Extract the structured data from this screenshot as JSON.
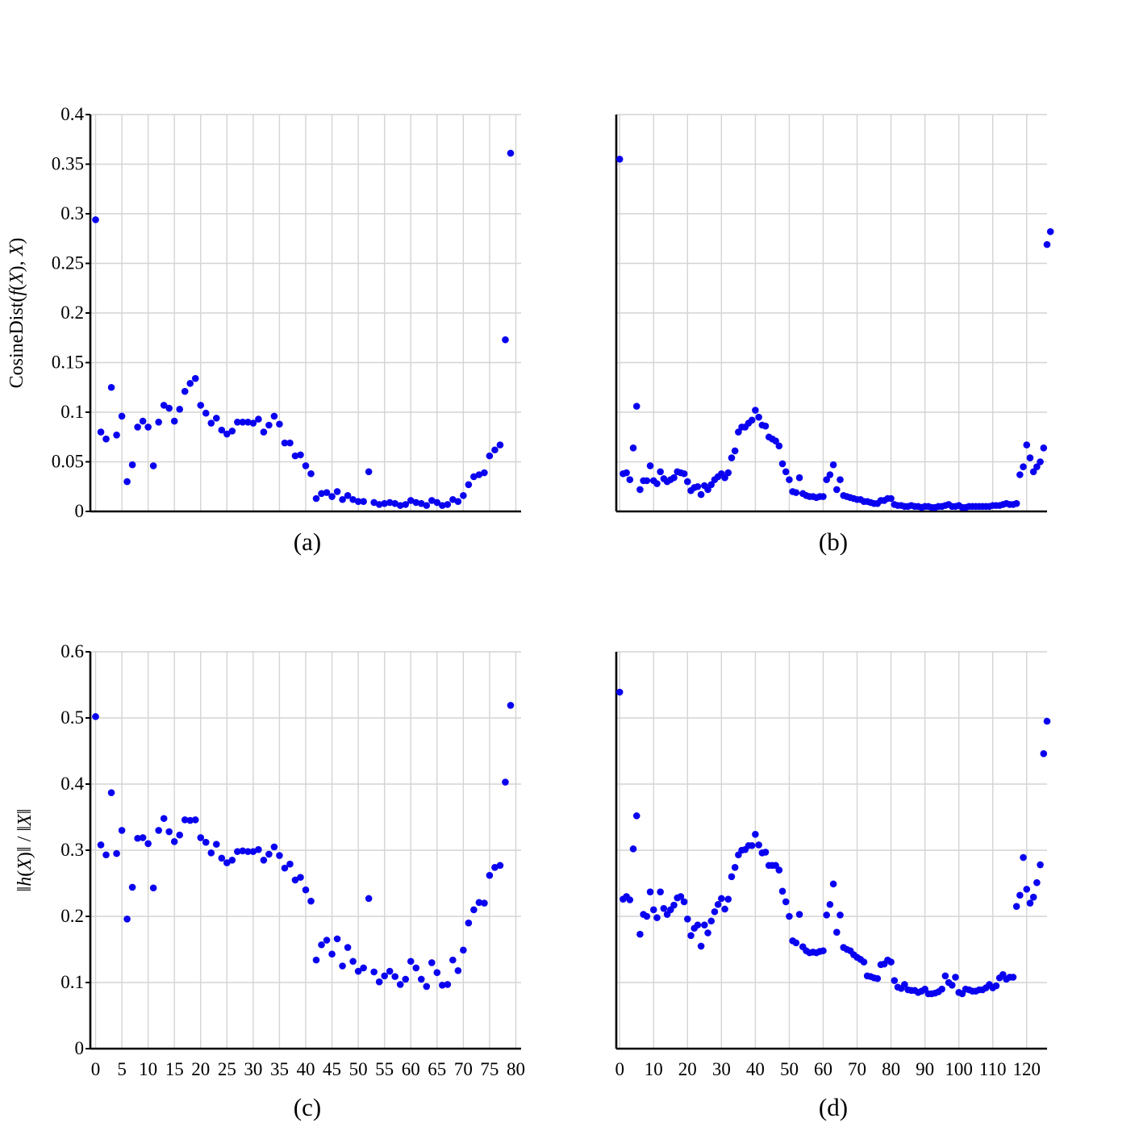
{
  "colors": {
    "points": "#0a00f0",
    "grid": "#d4d4d4",
    "axis": "#000000"
  },
  "chart_data": [
    {
      "panel": "a",
      "type": "scatter",
      "caption": "(a)",
      "ylabel": "CosineDist(f(X), X)",
      "xlim": [
        -1,
        81
      ],
      "ylim": [
        0,
        0.4
      ],
      "yticks": [
        0,
        0.05,
        0.1,
        0.15,
        0.2,
        0.25,
        0.3,
        0.35,
        0.4
      ],
      "ytick_labels": [
        "0",
        "0.05",
        "0.1",
        "0.15",
        "0.2",
        "0.25",
        "0.3",
        "0.35",
        "0.4"
      ],
      "xgrid": [
        0,
        5,
        10,
        15,
        20,
        25,
        30,
        35,
        40,
        45,
        50,
        55,
        60,
        65,
        70,
        75,
        80
      ],
      "xtick_labels": [],
      "x_start": 0,
      "values": [
        0.294,
        0.08,
        0.073,
        0.125,
        0.077,
        0.096,
        0.03,
        0.047,
        0.085,
        0.091,
        0.085,
        0.046,
        0.09,
        0.107,
        0.104,
        0.091,
        0.103,
        0.121,
        0.129,
        0.134,
        0.107,
        0.099,
        0.089,
        0.094,
        0.082,
        0.078,
        0.081,
        0.09,
        0.09,
        0.09,
        0.089,
        0.093,
        0.08,
        0.087,
        0.096,
        0.088,
        0.069,
        0.069,
        0.056,
        0.057,
        0.046,
        0.038,
        0.013,
        0.018,
        0.019,
        0.015,
        0.02,
        0.012,
        0.016,
        0.012,
        0.01,
        0.01,
        0.04,
        0.009,
        0.007,
        0.008,
        0.009,
        0.008,
        0.006,
        0.007,
        0.011,
        0.009,
        0.008,
        0.006,
        0.011,
        0.009,
        0.006,
        0.007,
        0.012,
        0.01,
        0.016,
        0.027,
        0.035,
        0.037,
        0.039,
        0.056,
        0.062,
        0.067,
        0.173,
        0.361
      ]
    },
    {
      "panel": "b",
      "type": "scatter",
      "caption": "(b)",
      "ylabel": "",
      "xlim": [
        -1,
        126
      ],
      "ylim": [
        0,
        0.4
      ],
      "yticks": [
        0,
        0.05,
        0.1,
        0.15,
        0.2,
        0.25,
        0.3,
        0.35,
        0.4
      ],
      "ytick_labels": [],
      "xgrid": [
        0,
        10,
        20,
        30,
        40,
        50,
        60,
        70,
        80,
        90,
        100,
        110,
        120
      ],
      "xtick_labels": [],
      "x_start": 0,
      "values": [
        0.355,
        0.038,
        0.039,
        0.032,
        0.064,
        0.106,
        0.022,
        0.031,
        0.031,
        0.046,
        0.031,
        0.028,
        0.04,
        0.033,
        0.03,
        0.032,
        0.034,
        0.04,
        0.039,
        0.038,
        0.03,
        0.021,
        0.024,
        0.025,
        0.017,
        0.026,
        0.022,
        0.027,
        0.032,
        0.035,
        0.038,
        0.034,
        0.039,
        0.054,
        0.061,
        0.08,
        0.085,
        0.085,
        0.089,
        0.092,
        0.102,
        0.095,
        0.087,
        0.086,
        0.075,
        0.073,
        0.071,
        0.066,
        0.048,
        0.04,
        0.032,
        0.02,
        0.019,
        0.034,
        0.018,
        0.016,
        0.015,
        0.015,
        0.014,
        0.015,
        0.015,
        0.032,
        0.037,
        0.047,
        0.022,
        0.032,
        0.016,
        0.015,
        0.014,
        0.013,
        0.012,
        0.012,
        0.01,
        0.01,
        0.009,
        0.008,
        0.008,
        0.011,
        0.011,
        0.013,
        0.013,
        0.007,
        0.006,
        0.006,
        0.005,
        0.005,
        0.006,
        0.005,
        0.005,
        0.004,
        0.005,
        0.005,
        0.004,
        0.004,
        0.005,
        0.005,
        0.006,
        0.007,
        0.005,
        0.005,
        0.006,
        0.004,
        0.004,
        0.005,
        0.005,
        0.005,
        0.005,
        0.005,
        0.005,
        0.005,
        0.006,
        0.006,
        0.006,
        0.007,
        0.008,
        0.007,
        0.007,
        0.008,
        0.037,
        0.045,
        0.067,
        0.054,
        0.04,
        0.045,
        0.05,
        0.064,
        0.269,
        0.282
      ]
    },
    {
      "panel": "c",
      "type": "scatter",
      "caption": "(c)",
      "ylabel": "‖h(X)‖ / ‖X‖",
      "xlim": [
        -1,
        81
      ],
      "ylim": [
        0,
        0.6
      ],
      "yticks": [
        0,
        0.1,
        0.2,
        0.3,
        0.4,
        0.5,
        0.6
      ],
      "ytick_labels": [
        "0",
        "0.1",
        "0.2",
        "0.3",
        "0.4",
        "0.5",
        "0.6"
      ],
      "xgrid": [
        0,
        5,
        10,
        15,
        20,
        25,
        30,
        35,
        40,
        45,
        50,
        55,
        60,
        65,
        70,
        75,
        80
      ],
      "xtick_labels": [
        "0",
        "5",
        "10",
        "15",
        "20",
        "25",
        "30",
        "35",
        "40",
        "45",
        "50",
        "55",
        "60",
        "65",
        "70",
        "75",
        "80"
      ],
      "x_start": 0,
      "values": [
        0.502,
        0.308,
        0.293,
        0.387,
        0.295,
        0.33,
        0.196,
        0.244,
        0.318,
        0.319,
        0.31,
        0.243,
        0.33,
        0.348,
        0.328,
        0.313,
        0.323,
        0.346,
        0.345,
        0.346,
        0.319,
        0.312,
        0.296,
        0.309,
        0.288,
        0.281,
        0.285,
        0.298,
        0.299,
        0.298,
        0.298,
        0.301,
        0.285,
        0.294,
        0.305,
        0.292,
        0.273,
        0.279,
        0.255,
        0.259,
        0.24,
        0.223,
        0.134,
        0.157,
        0.164,
        0.143,
        0.166,
        0.125,
        0.153,
        0.132,
        0.117,
        0.122,
        0.227,
        0.116,
        0.101,
        0.11,
        0.117,
        0.109,
        0.097,
        0.105,
        0.132,
        0.122,
        0.105,
        0.094,
        0.13,
        0.115,
        0.096,
        0.097,
        0.134,
        0.118,
        0.149,
        0.19,
        0.21,
        0.221,
        0.22,
        0.262,
        0.274,
        0.277,
        0.403,
        0.519
      ]
    },
    {
      "panel": "d",
      "type": "scatter",
      "caption": "(d)",
      "ylabel": "",
      "xlim": [
        -1,
        126
      ],
      "ylim": [
        0,
        0.6
      ],
      "yticks": [
        0,
        0.1,
        0.2,
        0.3,
        0.4,
        0.5,
        0.6
      ],
      "ytick_labels": [],
      "xgrid": [
        0,
        10,
        20,
        30,
        40,
        50,
        60,
        70,
        80,
        90,
        100,
        110,
        120
      ],
      "xtick_labels": [
        "0",
        "10",
        "20",
        "30",
        "40",
        "50",
        "60",
        "70",
        "80",
        "90",
        "100",
        "110",
        "120"
      ],
      "x_start": 0,
      "values": [
        0.539,
        0.226,
        0.23,
        0.225,
        0.302,
        0.352,
        0.173,
        0.203,
        0.2,
        0.237,
        0.21,
        0.198,
        0.237,
        0.212,
        0.203,
        0.21,
        0.217,
        0.228,
        0.23,
        0.222,
        0.196,
        0.171,
        0.182,
        0.187,
        0.155,
        0.187,
        0.175,
        0.193,
        0.207,
        0.218,
        0.227,
        0.211,
        0.226,
        0.26,
        0.274,
        0.293,
        0.3,
        0.301,
        0.307,
        0.307,
        0.324,
        0.308,
        0.296,
        0.297,
        0.277,
        0.277,
        0.277,
        0.27,
        0.238,
        0.222,
        0.2,
        0.163,
        0.16,
        0.203,
        0.154,
        0.148,
        0.145,
        0.146,
        0.145,
        0.147,
        0.148,
        0.202,
        0.218,
        0.249,
        0.176,
        0.202,
        0.153,
        0.15,
        0.148,
        0.142,
        0.138,
        0.135,
        0.131,
        0.11,
        0.109,
        0.107,
        0.106,
        0.127,
        0.128,
        0.134,
        0.131,
        0.103,
        0.093,
        0.091,
        0.097,
        0.089,
        0.088,
        0.088,
        0.085,
        0.087,
        0.09,
        0.083,
        0.083,
        0.084,
        0.086,
        0.09,
        0.11,
        0.1,
        0.096,
        0.108,
        0.085,
        0.083,
        0.09,
        0.089,
        0.087,
        0.087,
        0.089,
        0.089,
        0.092,
        0.097,
        0.092,
        0.095,
        0.107,
        0.112,
        0.105,
        0.108,
        0.108,
        0.215,
        0.232,
        0.289,
        0.241,
        0.22,
        0.229,
        0.251,
        0.278,
        0.446,
        0.495
      ]
    }
  ]
}
